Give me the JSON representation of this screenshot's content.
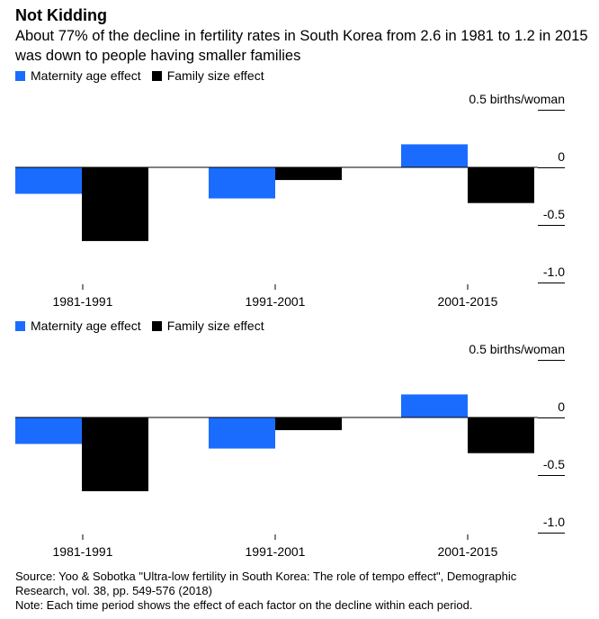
{
  "title": "Not Kidding",
  "subtitle": "About 77% of the decline in fertility rates in South Korea from 2.6 in 1981 to 1.2 in 2015 was down to people having smaller families",
  "source_lines": [
    "Source: Yoo & Sobotka \"Ultra-low fertility in South Korea: The role of tempo effect\", Demographic",
    "Research, vol. 38, pp. 549-576 (2018)",
    "Note: Each time period shows the effect of each factor on the decline within each period."
  ],
  "colors": {
    "maternity": "#1a6cff",
    "family": "#000000"
  },
  "chart_data": [
    {
      "type": "bar",
      "categories": [
        "1981-1991",
        "1991-2001",
        "2001-2015"
      ],
      "series": [
        {
          "name": "Maternity age effect",
          "values": [
            -0.23,
            -0.27,
            0.2
          ]
        },
        {
          "name": "Family size effect",
          "values": [
            -0.64,
            -0.11,
            -0.31
          ]
        }
      ],
      "ylim": [
        -1.0,
        0.5
      ],
      "yticks": [
        0.5,
        0,
        -0.5,
        -1.0
      ],
      "ytick_labels": [
        "0.5 births/woman",
        "0",
        "-0.5",
        "-1.0"
      ],
      "legend": "top-left"
    },
    {
      "type": "bar",
      "categories": [
        "1981-1991",
        "1991-2001",
        "2001-2015"
      ],
      "series": [
        {
          "name": "Maternity age effect",
          "values": [
            -0.23,
            -0.27,
            0.2
          ]
        },
        {
          "name": "Family size effect",
          "values": [
            -0.64,
            -0.11,
            -0.31
          ]
        }
      ],
      "ylim": [
        -1.0,
        0.5
      ],
      "yticks": [
        0.5,
        0,
        -0.5,
        -1.0
      ],
      "ytick_labels": [
        "0.5 births/woman",
        "0",
        "-0.5",
        "-1.0"
      ],
      "legend": "top-left"
    }
  ]
}
